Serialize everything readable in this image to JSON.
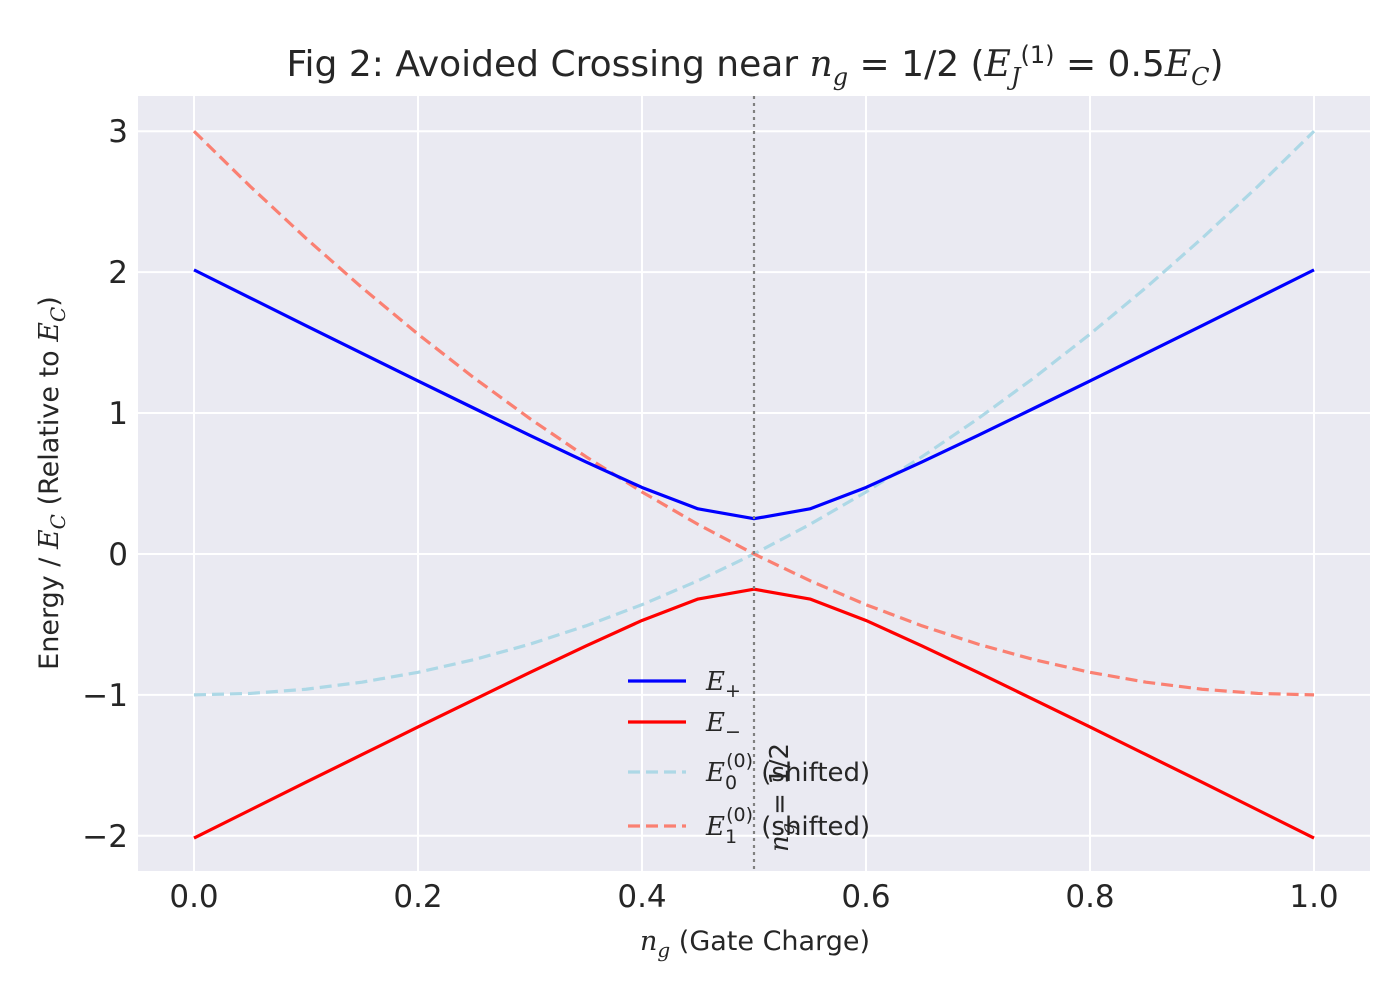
{
  "chart_data": {
    "type": "line",
    "title": {
      "prefix": "Fig 2: Avoided Crossing near ",
      "math1": "n",
      "math1_sub": "g",
      "math1_rest": " = 1/2 (",
      "math2": "E",
      "math2_sub": "J",
      "math2_sup": "(1)",
      "math2_rest": " = 0.5",
      "math3": "E",
      "math3_sub": "C",
      "suffix": ")"
    },
    "xlabel": {
      "sym": "n",
      "sub": "g",
      "text": " (Gate Charge)"
    },
    "ylabel": {
      "prefix": "Energy / ",
      "sym": "E",
      "sub": "C",
      "middle": " (Relative to ",
      "sym2": "E",
      "sub2": "C",
      "suffix": ")"
    },
    "xlim": [
      -0.05,
      1.05
    ],
    "ylim": [
      -2.25,
      3.25
    ],
    "xticks": [
      0.0,
      0.2,
      0.4,
      0.6,
      0.8,
      1.0
    ],
    "xtick_labels": [
      "0.0",
      "0.2",
      "0.4",
      "0.6",
      "0.8",
      "1.0"
    ],
    "yticks": [
      -2,
      -1,
      0,
      1,
      2,
      3
    ],
    "ytick_labels": [
      "−2",
      "−1",
      "0",
      "1",
      "2",
      "3"
    ],
    "grid": true,
    "background": "#eaeaf2",
    "legend_position": "lower-center",
    "x": [
      0.0,
      0.05,
      0.1,
      0.15,
      0.2,
      0.25,
      0.3,
      0.35,
      0.4,
      0.45,
      0.5,
      0.55,
      0.6,
      0.65,
      0.7,
      0.75,
      0.8,
      0.85,
      0.9,
      0.95,
      1.0
    ],
    "series": [
      {
        "name": "E",
        "name_sub": "+",
        "label_suffix": "",
        "color": "#0000ff",
        "style": "solid",
        "values": [
          2.016,
          1.818,
          1.62,
          1.424,
          1.228,
          1.034,
          0.841,
          0.653,
          0.472,
          0.32,
          0.25,
          0.32,
          0.472,
          0.653,
          0.841,
          1.034,
          1.228,
          1.424,
          1.62,
          1.818,
          2.016
        ]
      },
      {
        "name": "E",
        "name_sub": "−",
        "label_suffix": "",
        "color": "#ff0000",
        "style": "solid",
        "values": [
          -2.016,
          -1.818,
          -1.62,
          -1.424,
          -1.228,
          -1.034,
          -0.841,
          -0.653,
          -0.472,
          -0.32,
          -0.25,
          -0.32,
          -0.472,
          -0.653,
          -0.841,
          -1.034,
          -1.228,
          -1.424,
          -1.62,
          -1.818,
          -2.016
        ]
      },
      {
        "name": "E",
        "name_sub": "0",
        "name_sup": "(0)",
        "label_suffix": " (shifted)",
        "color": "#add8e6",
        "style": "dashed",
        "values": [
          -1.0,
          -0.99,
          -0.96,
          -0.91,
          -0.84,
          -0.75,
          -0.64,
          -0.51,
          -0.36,
          -0.19,
          0.0,
          0.21,
          0.44,
          0.69,
          0.96,
          1.25,
          1.56,
          1.89,
          2.24,
          2.61,
          3.0
        ]
      },
      {
        "name": "E",
        "name_sub": "1",
        "name_sup": "(0)",
        "label_suffix": " (shifted)",
        "color": "#fa8072",
        "style": "dashed",
        "values": [
          3.0,
          2.61,
          2.24,
          1.89,
          1.56,
          1.25,
          0.96,
          0.69,
          0.44,
          0.21,
          0.0,
          -0.19,
          -0.36,
          -0.51,
          -0.64,
          -0.75,
          -0.84,
          -0.91,
          -0.96,
          -0.99,
          -1.0
        ]
      }
    ],
    "annotations": [
      {
        "x": 0.5,
        "sym": "n",
        "sub": "g",
        "text": " = 1/2",
        "color": "#808080",
        "style": "dotted"
      }
    ]
  }
}
